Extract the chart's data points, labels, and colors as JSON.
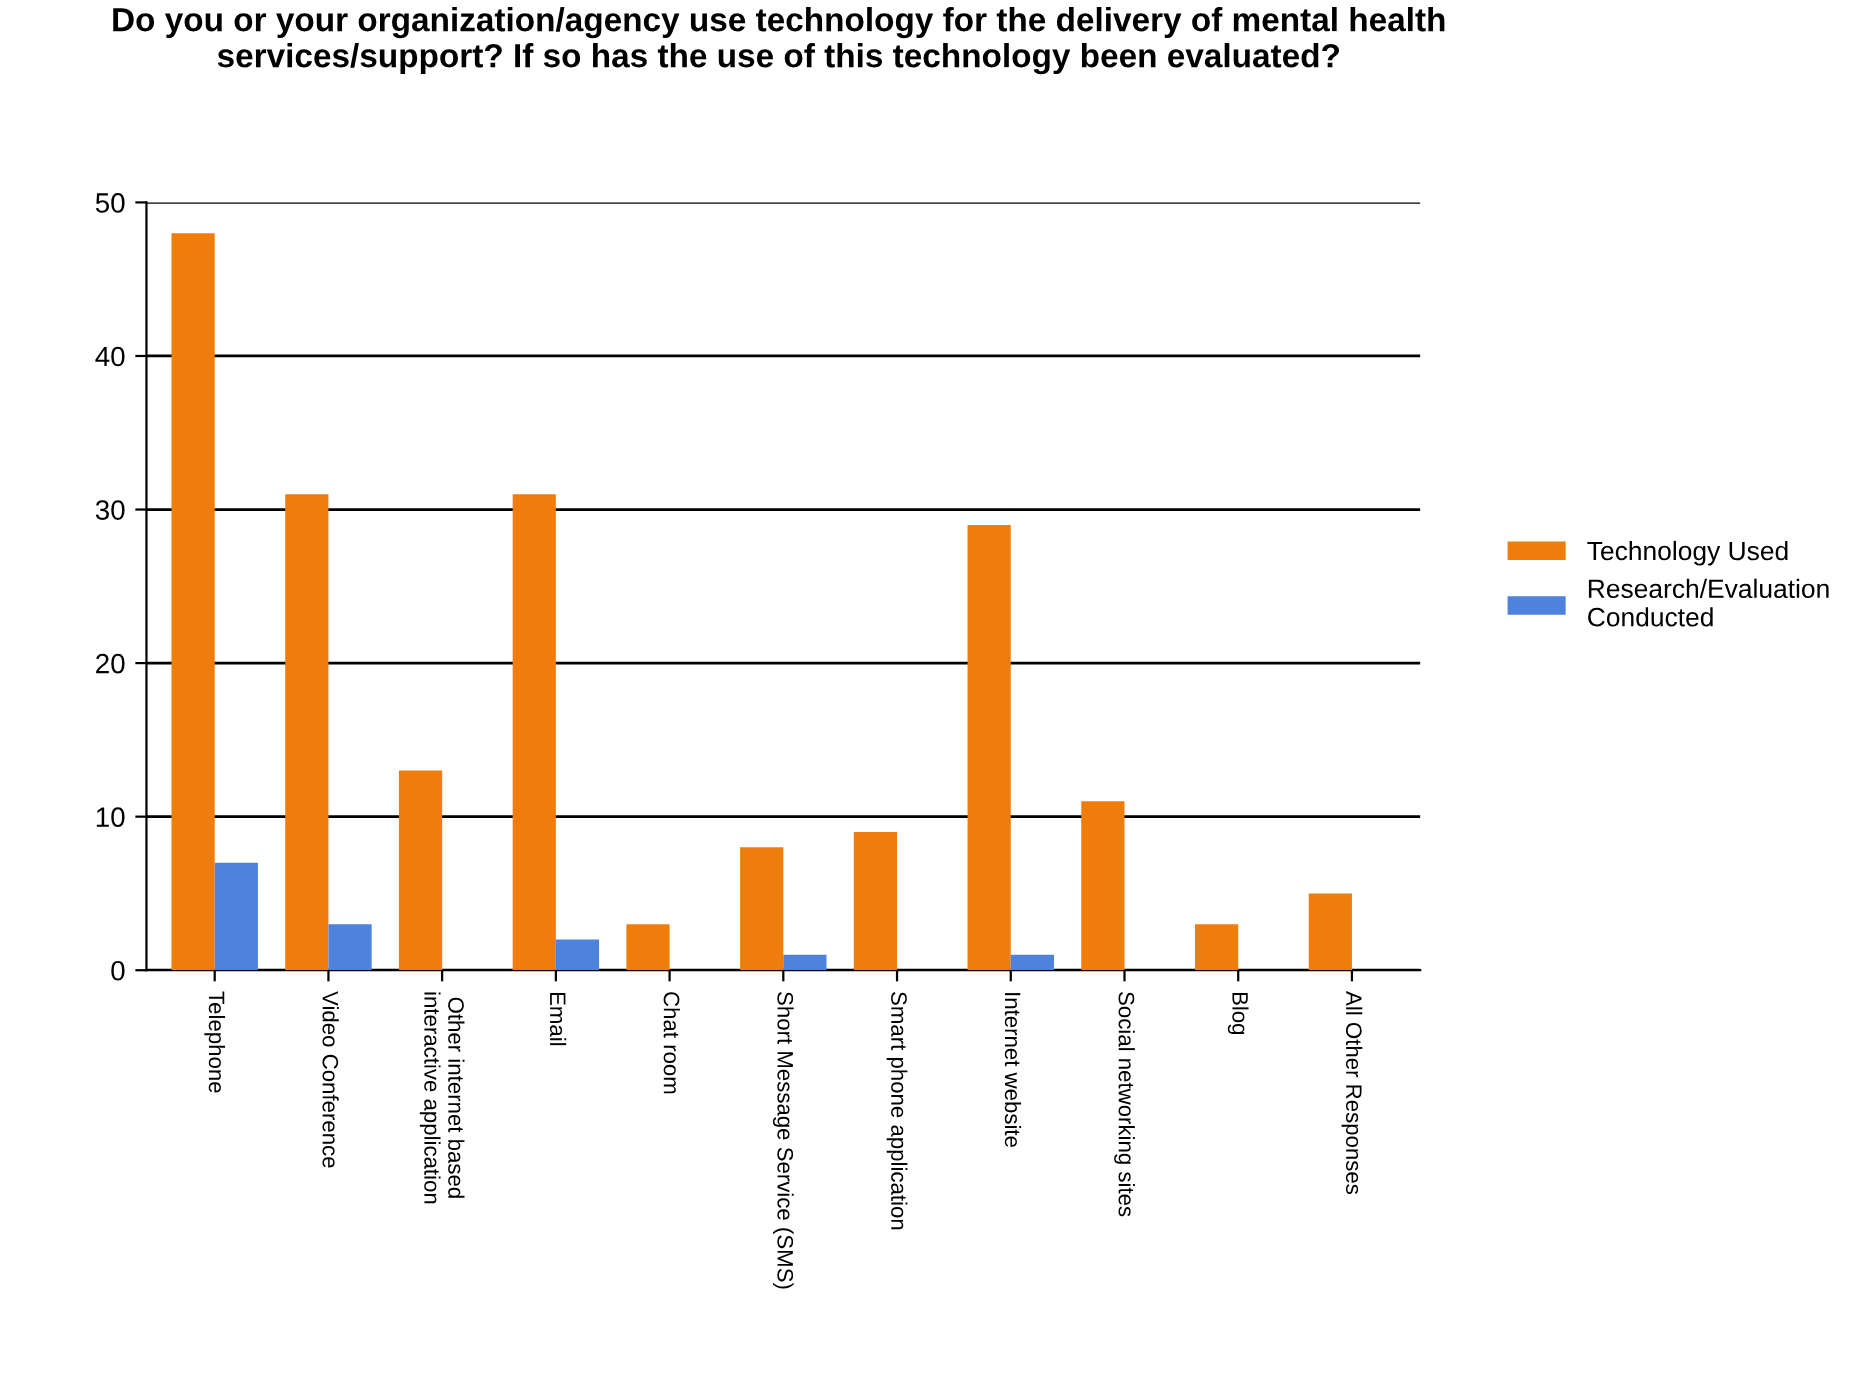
{
  "chart_data": {
    "type": "bar",
    "title": "Do you or your organization/agency use technology for the delivery of mental health services/support? If so has the use of this technology been evaluated?",
    "categories": [
      "Telephone",
      "Video Conference",
      "Other internet based interactive application",
      "Email",
      "Chat room",
      "Short Message Service (SMS)",
      "Smart phone application",
      "Internet website",
      "Social networking sites",
      "Blog",
      "All Other Responses"
    ],
    "series": [
      {
        "name": "Technology Used",
        "color": "#ee7d0c",
        "values": [
          48,
          31,
          13,
          31,
          3,
          8,
          9,
          29,
          11,
          3,
          5
        ]
      },
      {
        "name": "Research/Evaluation Conducted",
        "color": "#4f82dc",
        "values": [
          7,
          3,
          0,
          2,
          0,
          1,
          0,
          1,
          0,
          0,
          0
        ]
      }
    ],
    "ylim": [
      0,
      50
    ],
    "yticks": [
      0,
      10,
      20,
      30,
      40,
      50
    ],
    "grid": "y",
    "legend": "right"
  }
}
